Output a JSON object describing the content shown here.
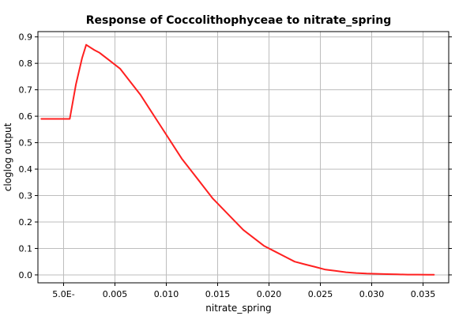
{
  "chart_data": {
    "type": "line",
    "title": "Response of Coccolithophyceae to nitrate_spring",
    "xlabel": "nitrate_spring",
    "ylabel": "cloglog output",
    "xlim": [
      -0.0025,
      0.0375
    ],
    "ylim": [
      -0.03,
      0.92
    ],
    "grid": true,
    "x_ticks": [
      {
        "value": 0.0,
        "label": "5.0E-"
      },
      {
        "value": 0.005,
        "label": "0.005"
      },
      {
        "value": 0.01,
        "label": "0.010"
      },
      {
        "value": 0.015,
        "label": "0.015"
      },
      {
        "value": 0.02,
        "label": "0.020"
      },
      {
        "value": 0.025,
        "label": "0.025"
      },
      {
        "value": 0.03,
        "label": "0.030"
      },
      {
        "value": 0.035,
        "label": "0.035"
      }
    ],
    "y_ticks": [
      {
        "value": 0.0,
        "label": "0.0"
      },
      {
        "value": 0.1,
        "label": "0.1"
      },
      {
        "value": 0.2,
        "label": "0.2"
      },
      {
        "value": 0.3,
        "label": "0.3"
      },
      {
        "value": 0.4,
        "label": "0.4"
      },
      {
        "value": 0.5,
        "label": "0.5"
      },
      {
        "value": 0.6,
        "label": "0.6"
      },
      {
        "value": 0.7,
        "label": "0.7"
      },
      {
        "value": 0.8,
        "label": "0.8"
      },
      {
        "value": 0.9,
        "label": "0.9"
      }
    ],
    "series": [
      {
        "color": "#ff2020",
        "x": [
          -0.0022,
          0.0,
          0.0003,
          0.0006,
          0.0012,
          0.0018,
          0.0022,
          0.0026,
          0.003,
          0.0035,
          0.0045,
          0.0055,
          0.0065,
          0.0075,
          0.0085,
          0.0095,
          0.0105,
          0.0115,
          0.0125,
          0.0135,
          0.0145,
          0.0155,
          0.0165,
          0.0175,
          0.0185,
          0.0195,
          0.0205,
          0.0215,
          0.0225,
          0.0235,
          0.0245,
          0.0255,
          0.0265,
          0.0275,
          0.0285,
          0.0295,
          0.0305,
          0.0315,
          0.0325,
          0.0335,
          0.0345,
          0.0355,
          0.0361
        ],
        "y": [
          0.59,
          0.59,
          0.59,
          0.59,
          0.72,
          0.82,
          0.87,
          0.86,
          0.85,
          0.84,
          0.81,
          0.78,
          0.73,
          0.68,
          0.62,
          0.56,
          0.5,
          0.44,
          0.39,
          0.34,
          0.29,
          0.25,
          0.21,
          0.17,
          0.14,
          0.11,
          0.09,
          0.07,
          0.05,
          0.04,
          0.03,
          0.02,
          0.015,
          0.01,
          0.007,
          0.005,
          0.004,
          0.003,
          0.002,
          0.001,
          0.001,
          0.0005,
          0.0005
        ]
      }
    ]
  }
}
